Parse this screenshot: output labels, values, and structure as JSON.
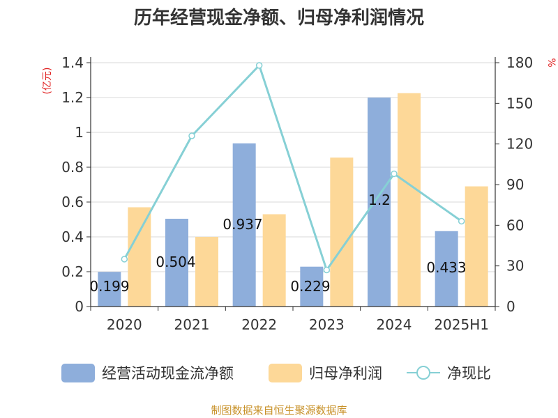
{
  "chart_data": {
    "type": "bar",
    "title": "历年经营现金净额、归母净利润情况",
    "categories": [
      "2020",
      "2021",
      "2022",
      "2023",
      "2024",
      "2025H1"
    ],
    "series": [
      {
        "name": "经营活动现金流净额",
        "type": "bar",
        "axis": "left",
        "color": "#8eaedb",
        "values": [
          0.199,
          0.504,
          0.937,
          0.229,
          1.2,
          0.433
        ]
      },
      {
        "name": "归母净利润",
        "type": "bar",
        "axis": "left",
        "color": "#fdd898",
        "values": [
          0.57,
          0.4,
          0.53,
          0.855,
          1.225,
          0.69
        ]
      },
      {
        "name": "净现比",
        "type": "line",
        "axis": "right",
        "color": "#86d0d5",
        "values": [
          35,
          126,
          178,
          27,
          98,
          63
        ]
      }
    ],
    "data_labels": [
      "0.199",
      "0.504",
      "0.937",
      "0.229",
      "1.2",
      "0.433"
    ],
    "y_left": {
      "label": "(亿元)",
      "ylim": [
        0,
        1.4
      ],
      "ticks": [
        "0",
        "0.2",
        "0.4",
        "0.6",
        "0.8",
        "1",
        "1.2",
        "1.4"
      ]
    },
    "y_right": {
      "label": "%",
      "ylim": [
        0,
        180
      ],
      "ticks": [
        "0",
        "30",
        "60",
        "90",
        "120",
        "150",
        "180"
      ]
    },
    "grid": true,
    "legend_position": "bottom",
    "source": "制图数据来自恒生聚源数据库"
  }
}
